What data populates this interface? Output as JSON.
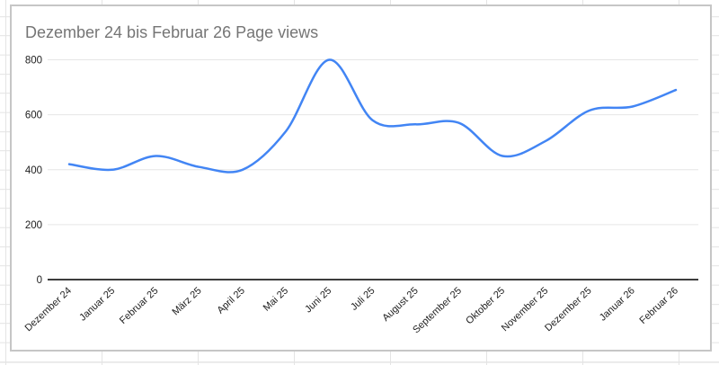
{
  "chart_card": {
    "title": "Dezember 24 bis Februar 26 Page views"
  },
  "chart_data": {
    "type": "line",
    "title": "Dezember 24 bis Februar 26 Page views",
    "categories": [
      "Dezember 24",
      "Januar 25",
      "Februar 25",
      "März 25",
      "April 25",
      "Mai 25",
      "Juni 25",
      "Juli 25",
      "August 25",
      "September 25",
      "Oktober 25",
      "November 25",
      "Dezember 25",
      "Januar 26",
      "Februar 26"
    ],
    "series": [
      {
        "name": "Page views",
        "values": [
          420,
          400,
          450,
          410,
          400,
          540,
          800,
          580,
          565,
          570,
          450,
          505,
          615,
          630,
          690
        ]
      }
    ],
    "ylim": [
      0,
      800
    ],
    "y_ticks": [
      0,
      200,
      400,
      600,
      800
    ],
    "grid": true,
    "legend_position": "none",
    "smooth_line": true,
    "x_label_rotation_deg": -43,
    "colors": {
      "line": "#4285f4",
      "title": "#757575",
      "gridline": "#e6e6e6",
      "zero_axis": "#3c3c3c",
      "tick_label": "#202020"
    }
  }
}
